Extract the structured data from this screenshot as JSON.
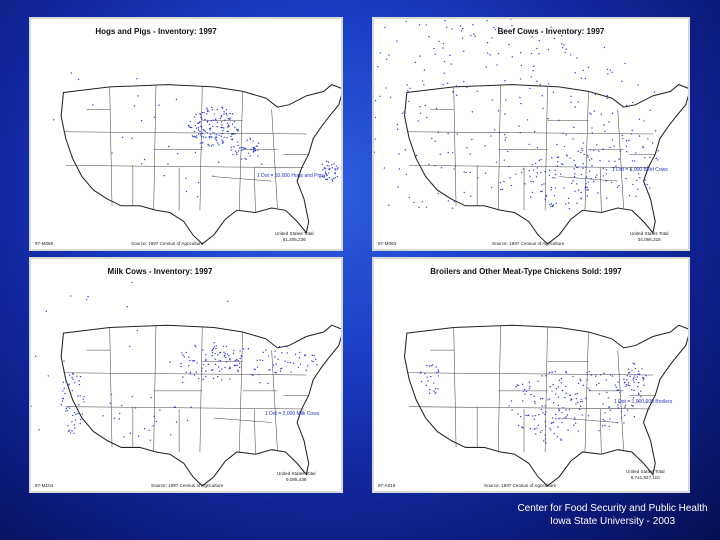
{
  "maps": [
    {
      "title": "Hogs and Pigs - Inventory:  1997",
      "legend": "1 Dot = 10,000 Hogs and Pigs",
      "code": "97-M086",
      "source": "Source:  1997 Census of Agriculture",
      "total_label": "United States Total",
      "total_value": "61,206,236"
    },
    {
      "title": "Beef Cows - Inventory:  1997",
      "legend": "1 Dot = 5,000 Beef Cows",
      "code": "97-M093",
      "source": "Source:  1997 Census of Agriculture",
      "total_label": "United States Total",
      "total_value": "34,066,315"
    },
    {
      "title": "Milk Cows - Inventory:  1997",
      "legend": "1 Dot = 2,000 Milk Cows",
      "code": "97-M104",
      "source": "Source:  1997 Census of Agriculture",
      "total_label": "United States Total",
      "total_value": "9,095,439"
    },
    {
      "title": "Broilers and Other Meat-Type Chickens Sold:  1997",
      "legend": "1 Dot = 1,000,000 Broilers",
      "code": "97-A019",
      "source": "Source:  1997 Census of Agriculture",
      "total_label": "United States Total",
      "total_value": "6,741,927,110"
    }
  ],
  "footer": {
    "line1": "Center for Food Security and Public Health",
    "line2": "Iowa State University - 2003"
  },
  "colors": {
    "dots": "#2a3cd8",
    "background": "#1a3cc4"
  }
}
